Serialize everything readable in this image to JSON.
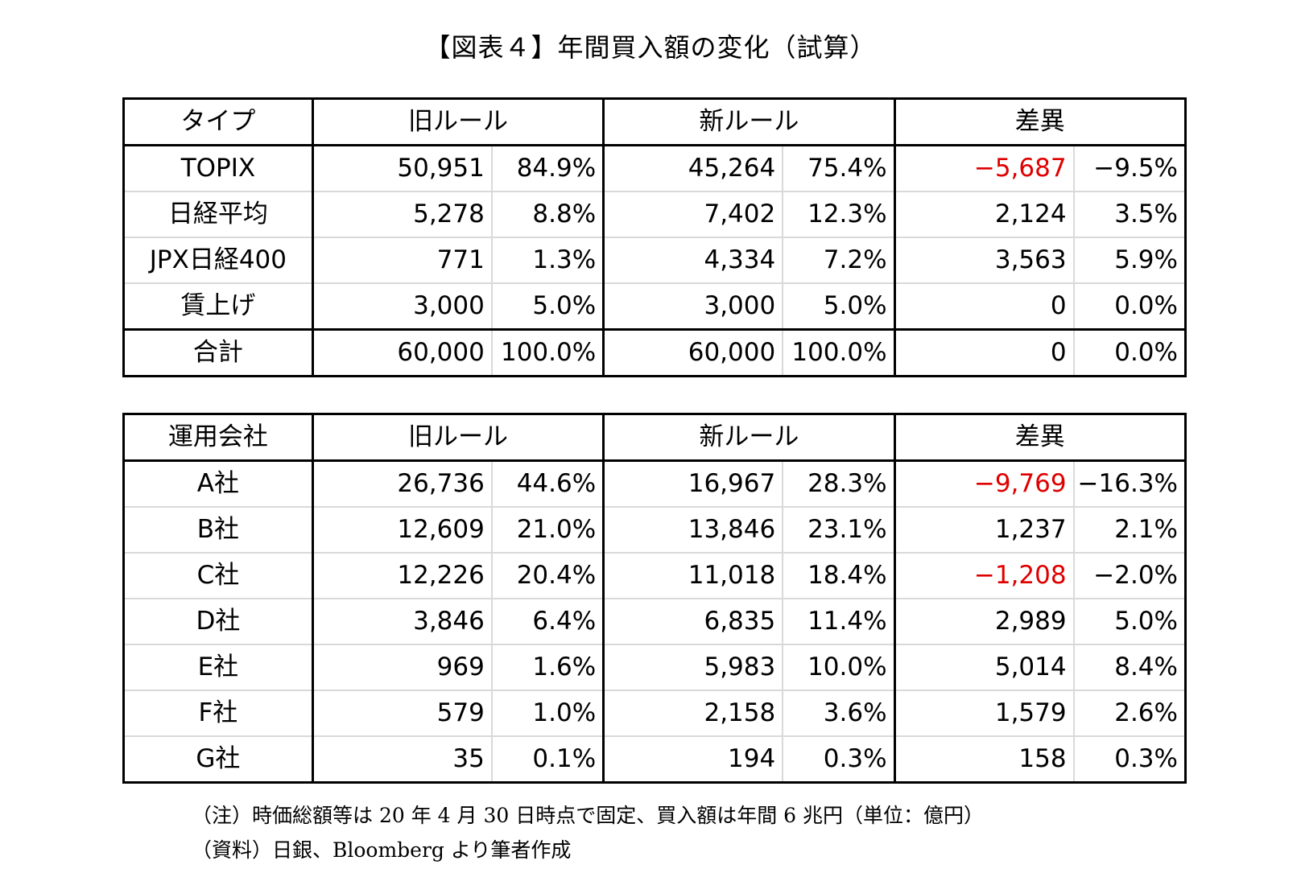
{
  "title": "【図表４】年間買入額の変化（試算）",
  "table_types": {
    "headers": [
      "タイプ",
      "旧ルール",
      "新ルール",
      "差異"
    ],
    "rows": [
      {
        "label": "TOPIX",
        "old_amt": "50,951",
        "old_pct": "84.9%",
        "new_amt": "45,264",
        "new_pct": "75.4%",
        "diff_amt": "−5,687",
        "diff_pct": "−9.5%",
        "diff_neg": true
      },
      {
        "label": "日経平均",
        "old_amt": "5,278",
        "old_pct": "8.8%",
        "new_amt": "7,402",
        "new_pct": "12.3%",
        "diff_amt": "2,124",
        "diff_pct": "3.5%",
        "diff_neg": false
      },
      {
        "label": "JPX日経400",
        "old_amt": "771",
        "old_pct": "1.3%",
        "new_amt": "4,334",
        "new_pct": "7.2%",
        "diff_amt": "3,563",
        "diff_pct": "5.9%",
        "diff_neg": false
      },
      {
        "label": "賃上げ",
        "old_amt": "3,000",
        "old_pct": "5.0%",
        "new_amt": "3,000",
        "new_pct": "5.0%",
        "diff_amt": "0",
        "diff_pct": "0.0%",
        "diff_neg": false
      }
    ],
    "total": {
      "label": "合計",
      "old_amt": "60,000",
      "old_pct": "100.0%",
      "new_amt": "60,000",
      "new_pct": "100.0%",
      "diff_amt": "0",
      "diff_pct": "0.0%"
    }
  },
  "table_companies": {
    "headers": [
      "運用会社",
      "旧ルール",
      "新ルール",
      "差異"
    ],
    "rows": [
      {
        "label": "A社",
        "old_amt": "26,736",
        "old_pct": "44.6%",
        "new_amt": "16,967",
        "new_pct": "28.3%",
        "diff_amt": "−9,769",
        "diff_pct": "−16.3%",
        "diff_neg": true
      },
      {
        "label": "B社",
        "old_amt": "12,609",
        "old_pct": "21.0%",
        "new_amt": "13,846",
        "new_pct": "23.1%",
        "diff_amt": "1,237",
        "diff_pct": "2.1%",
        "diff_neg": false
      },
      {
        "label": "C社",
        "old_amt": "12,226",
        "old_pct": "20.4%",
        "new_amt": "11,018",
        "new_pct": "18.4%",
        "diff_amt": "−1,208",
        "diff_pct": "−2.0%",
        "diff_neg": true
      },
      {
        "label": "D社",
        "old_amt": "3,846",
        "old_pct": "6.4%",
        "new_amt": "6,835",
        "new_pct": "11.4%",
        "diff_amt": "2,989",
        "diff_pct": "5.0%",
        "diff_neg": false
      },
      {
        "label": "E社",
        "old_amt": "969",
        "old_pct": "1.6%",
        "new_amt": "5,983",
        "new_pct": "10.0%",
        "diff_amt": "5,014",
        "diff_pct": "8.4%",
        "diff_neg": false
      },
      {
        "label": "F社",
        "old_amt": "579",
        "old_pct": "1.0%",
        "new_amt": "2,158",
        "new_pct": "3.6%",
        "diff_amt": "1,579",
        "diff_pct": "2.6%",
        "diff_neg": false
      },
      {
        "label": "G社",
        "old_amt": "35",
        "old_pct": "0.1%",
        "new_amt": "194",
        "new_pct": "0.3%",
        "diff_amt": "158",
        "diff_pct": "0.3%",
        "diff_neg": false
      }
    ]
  },
  "notes": {
    "note": "（注）時価総額等は 20 年 4 月 30 日時点で固定、買入額は年間 6 兆円（単位：億円）",
    "source": "（資料）日銀、Bloomberg より筆者作成"
  },
  "colors": {
    "negative": "#e00000",
    "inner_grid": "#d9d9d9",
    "border": "#000000"
  }
}
